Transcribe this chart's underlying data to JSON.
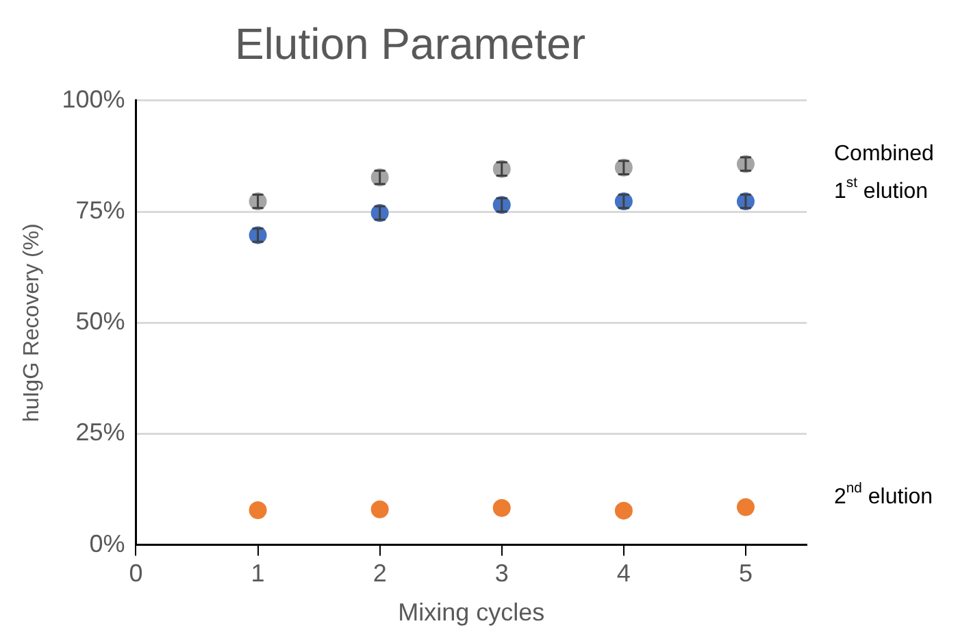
{
  "chart_data": {
    "type": "scatter",
    "title": "Elution Parameter",
    "xlabel": "Mixing cycles",
    "ylabel": "huIgG Recovery (%)",
    "x": [
      1,
      2,
      3,
      4,
      5
    ],
    "series": [
      {
        "name": "Combined",
        "color": "#a5a5a5",
        "values": [
          77.3,
          82.7,
          84.6,
          84.9,
          85.7
        ],
        "errors": [
          1.5,
          1.5,
          1.5,
          1.5,
          1.5
        ]
      },
      {
        "name": "1$^{st}$ elution",
        "color": "#4472c4",
        "values": [
          69.7,
          74.7,
          76.5,
          77.3,
          77.3
        ],
        "errors": [
          1.5,
          1.5,
          1.5,
          1.5,
          1.5
        ]
      },
      {
        "name": "2$^{nd}$ elution",
        "color": "#ed7d31",
        "values": [
          7.8,
          8.0,
          8.3,
          7.7,
          8.5
        ]
      }
    ],
    "xlim": [
      0,
      5.5
    ],
    "xticks": [
      0,
      1,
      2,
      3,
      4,
      5
    ],
    "ylim": [
      0,
      100
    ],
    "yticks": [
      {
        "value": 0,
        "label": "0%"
      },
      {
        "value": 25,
        "label": "25%"
      },
      {
        "value": 50,
        "label": "50%"
      },
      {
        "value": 75,
        "label": "75%"
      },
      {
        "value": 100,
        "label": "100%"
      }
    ],
    "grid": "y",
    "legend": false,
    "marker": "circle"
  }
}
